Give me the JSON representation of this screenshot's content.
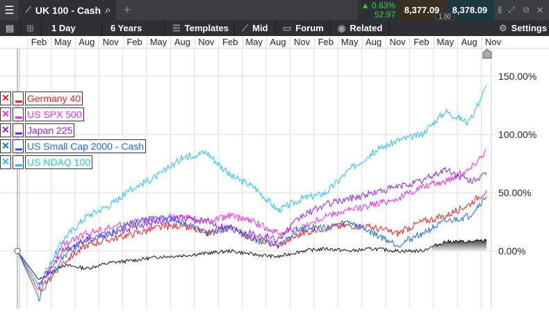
{
  "topbar": {
    "instrument": "UK 100 - Cash",
    "change_pct": "0.63%",
    "change_abs": "52.97",
    "sell": "8,377.09",
    "buy": "8,378.09",
    "spread": "1.00",
    "add_tab": "+"
  },
  "toolbar": {
    "interval": "1 Day",
    "range": "6 Years",
    "templates": "Templates",
    "price_type": "Mid",
    "forum": "Forum",
    "related": "Related",
    "settings": "Settings"
  },
  "colors": {
    "up": "#3ad13a",
    "sell_bg": "#3b2f22",
    "buy_bg": "#1c3942",
    "germany": "#ff1a1a",
    "spx": "#ff22ff",
    "japan": "#8b1aff",
    "smallcap": "#1a66ff",
    "ndaq": "#1ac2ff",
    "uk": "#111111"
  },
  "legend": [
    {
      "name": "Germany 40",
      "color": "#ff1a1a"
    },
    {
      "name": "US SPX 500",
      "color": "#ff22ff"
    },
    {
      "name": "Japan 225",
      "color": "#8b1aff"
    },
    {
      "name": "US Small Cap 2000 - Cash",
      "color": "#1a66ff"
    },
    {
      "name": "US NDAQ 100",
      "color": "#1ac2ff"
    }
  ],
  "chart_data": {
    "type": "line",
    "x_ticks": [
      "Feb",
      "May",
      "Aug",
      "Nov",
      "Feb",
      "May",
      "Aug",
      "Nov",
      "Feb",
      "May",
      "Aug",
      "Nov",
      "Feb",
      "May",
      "Aug",
      "Nov",
      "Feb",
      "May",
      "Aug",
      "Nov"
    ],
    "y_ticks": [
      "150.00%",
      "100.00%",
      "50.00%",
      "0.00%"
    ],
    "ylim": [
      -45,
      170
    ],
    "grid": true,
    "series": [
      {
        "name": "UK 100 - Cash",
        "color": "#111111",
        "values": [
          0,
          -25,
          -12,
          -15,
          -10,
          -8,
          -5,
          -4,
          -2,
          0,
          -3,
          -5,
          0,
          2,
          0,
          2,
          0,
          0,
          8,
          8,
          9
        ]
      },
      {
        "name": "Germany 40",
        "color": "#ff1a1a",
        "values": [
          0,
          -35,
          -10,
          5,
          10,
          15,
          20,
          22,
          15,
          20,
          10,
          5,
          15,
          20,
          22,
          20,
          15,
          25,
          30,
          40,
          52
        ]
      },
      {
        "name": "US SPX 500",
        "color": "#ff22ff",
        "values": [
          0,
          -30,
          5,
          15,
          20,
          25,
          28,
          30,
          25,
          30,
          25,
          15,
          20,
          30,
          35,
          40,
          45,
          55,
          60,
          70,
          87
        ]
      },
      {
        "name": "Japan 225",
        "color": "#8b1aff",
        "values": [
          0,
          -30,
          0,
          10,
          15,
          20,
          25,
          28,
          25,
          20,
          15,
          10,
          30,
          40,
          45,
          50,
          55,
          60,
          70,
          60,
          65
        ]
      },
      {
        "name": "US Small Cap 2000 - Cash",
        "color": "#1a66ff",
        "values": [
          0,
          -40,
          -5,
          10,
          15,
          25,
          30,
          25,
          15,
          20,
          10,
          5,
          20,
          20,
          25,
          15,
          5,
          15,
          25,
          30,
          47
        ]
      },
      {
        "name": "US NDAQ 100",
        "color": "#1ac2ff",
        "values": [
          0,
          -30,
          10,
          30,
          40,
          55,
          65,
          80,
          85,
          65,
          55,
          35,
          45,
          50,
          70,
          85,
          95,
          100,
          120,
          110,
          142
        ]
      }
    ]
  }
}
